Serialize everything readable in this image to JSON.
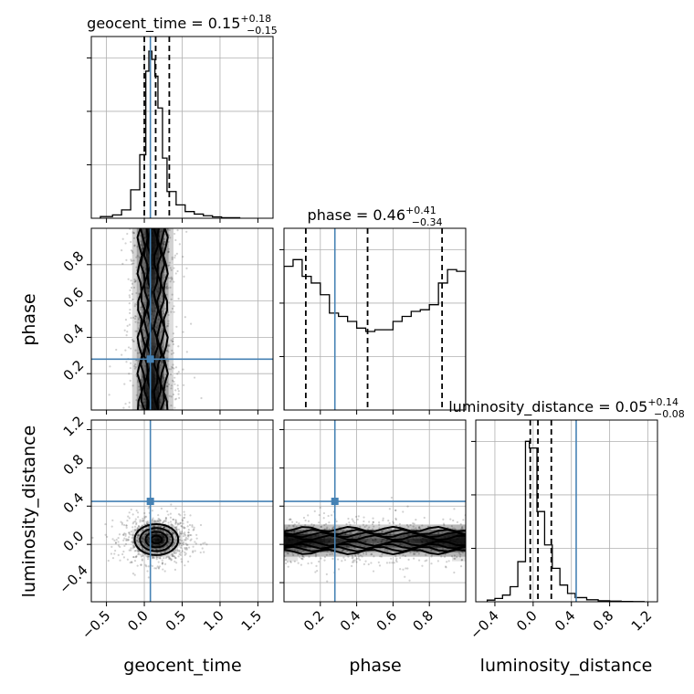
{
  "chart_data": {
    "type": "corner",
    "parameters": [
      "geocent_time",
      "phase",
      "luminosity_distance"
    ],
    "truth_color": "#4682b4",
    "truths": {
      "geocent_time": 0.08,
      "phase": 0.28,
      "luminosity_distance": 0.45
    },
    "diagonal": [
      {
        "param": "geocent_time",
        "title": {
          "prefix": "geocent_time = ",
          "value": "0.15",
          "plus": "+0.18",
          "minus": "−0.15"
        },
        "quantiles": [
          0.0,
          0.15,
          0.33
        ],
        "xlim": [
          -0.7,
          1.7
        ],
        "bins_x": [
          -0.58,
          -0.42,
          -0.3,
          -0.18,
          -0.06,
          0.02,
          0.06,
          0.1,
          0.14,
          0.18,
          0.24,
          0.3,
          0.42,
          0.54,
          0.66,
          0.78,
          0.9,
          1.02,
          1.26
        ],
        "counts": [
          0.01,
          0.02,
          0.05,
          0.17,
          0.38,
          0.88,
          1.0,
          0.95,
          0.85,
          0.66,
          0.36,
          0.16,
          0.08,
          0.04,
          0.025,
          0.015,
          0.008,
          0.003
        ]
      },
      {
        "param": "phase",
        "title": {
          "prefix": "phase = ",
          "value": "0.46",
          "plus": "+0.41",
          "minus": "−0.34"
        },
        "quantiles": [
          0.12,
          0.46,
          0.87
        ],
        "xlim": [
          0.0,
          1.0
        ],
        "bins_x": [
          0.0,
          0.05,
          0.1,
          0.15,
          0.2,
          0.25,
          0.3,
          0.35,
          0.4,
          0.45,
          0.5,
          0.55,
          0.6,
          0.65,
          0.7,
          0.75,
          0.8,
          0.85,
          0.9,
          0.95,
          1.0
        ],
        "counts": [
          0.86,
          0.9,
          0.8,
          0.76,
          0.69,
          0.58,
          0.56,
          0.53,
          0.49,
          0.47,
          0.48,
          0.48,
          0.53,
          0.56,
          0.59,
          0.6,
          0.63,
          0.76,
          0.84,
          0.83
        ]
      },
      {
        "param": "luminosity_distance",
        "title": {
          "prefix": "luminosity_distance = ",
          "value": "0.05",
          "plus": "+0.14",
          "minus": "−0.08"
        },
        "quantiles": [
          -0.03,
          0.05,
          0.19
        ],
        "xlim": [
          -0.6,
          1.3
        ],
        "bins_x": [
          -0.48,
          -0.4,
          -0.32,
          -0.24,
          -0.16,
          -0.08,
          -0.04,
          0.04,
          0.12,
          0.2,
          0.28,
          0.36,
          0.44,
          0.56,
          0.68,
          0.8,
          0.92,
          1.04,
          1.16
        ],
        "counts": [
          0.01,
          0.02,
          0.04,
          0.09,
          0.24,
          0.96,
          0.92,
          0.54,
          0.34,
          0.2,
          0.1,
          0.05,
          0.025,
          0.012,
          0.006,
          0.004,
          0.002,
          0.001
        ]
      }
    ],
    "pairs": [
      {
        "x": "geocent_time",
        "y": "phase",
        "xlim": [
          -0.7,
          1.7
        ],
        "ylim": [
          0.0,
          1.0
        ],
        "xticks": [
          -0.5,
          0.0,
          0.5,
          1.0,
          1.5
        ],
        "yticks": [
          0.2,
          0.4,
          0.6,
          0.8
        ],
        "ytick_labels": [
          "0.2",
          "0.4",
          "0.6",
          "0.8"
        ],
        "center": [
          0.11,
          0.5
        ],
        "spread": [
          0.13,
          0.33
        ],
        "dist": "band_y"
      },
      {
        "x": "geocent_time",
        "y": "luminosity_distance",
        "xlim": [
          -0.7,
          1.7
        ],
        "ylim": [
          -0.6,
          1.3
        ],
        "xticks": [
          -0.5,
          0.0,
          0.5,
          1.0,
          1.5
        ],
        "xtick_labels": [
          "−0.5",
          "0.0",
          "0.5",
          "1.0",
          "1.5"
        ],
        "yticks": [
          -0.4,
          0.0,
          0.4,
          0.8,
          1.2
        ],
        "ytick_labels": [
          "−0.4",
          "0.0",
          "0.4",
          "0.8",
          "1.2"
        ],
        "center": [
          0.16,
          0.05
        ],
        "spread": [
          0.16,
          0.09
        ],
        "dist": "blob"
      },
      {
        "x": "phase",
        "y": "luminosity_distance",
        "xlim": [
          0.0,
          1.0
        ],
        "ylim": [
          -0.6,
          1.3
        ],
        "xticks": [
          0.2,
          0.4,
          0.6,
          0.8
        ],
        "xtick_labels": [
          "0.2",
          "0.4",
          "0.6",
          "0.8"
        ],
        "yticks": [
          -0.4,
          0.0,
          0.4,
          0.8,
          1.2
        ],
        "center": [
          0.5,
          0.04
        ],
        "spread": [
          0.33,
          0.09
        ],
        "dist": "band_x"
      }
    ],
    "diag_xtick_labels_bottom": [
      "−0.4",
      "0.0",
      "0.4",
      "0.8",
      "1.2"
    ],
    "diag_xticks_bottom": [
      -0.4,
      0.0,
      0.4,
      0.8,
      1.2
    ],
    "xlabels": [
      "geocent_time",
      "phase",
      "luminosity_distance"
    ],
    "ylabels": [
      "phase",
      "luminosity_distance"
    ]
  }
}
